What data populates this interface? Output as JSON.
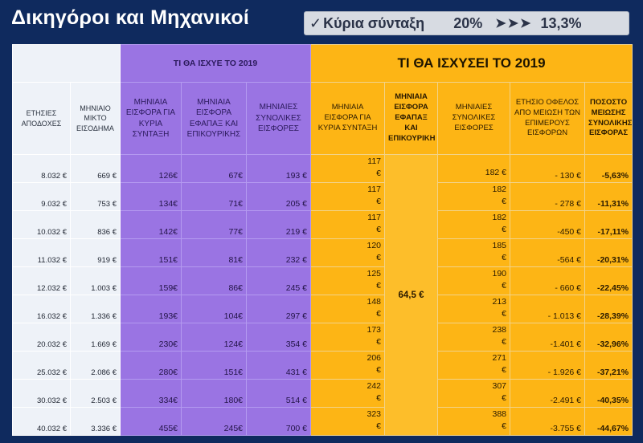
{
  "title": "Δικηγόροι και Μηχανικοί",
  "banner": {
    "check_icon": "✓",
    "label": "Κύρια σύνταξη",
    "old_rate": "20%",
    "arrows": "➤➤➤",
    "new_rate": "13,3%"
  },
  "groups": {
    "current": "ΤΙ ΘΑ ΙΣΧΥΕ ΤΟ 2019",
    "new": "ΤΙ ΘΑ ΙΣΧΥΣΕΙ ΤΟ 2019"
  },
  "headers": {
    "annual_income": "ΕΤΗΣΙΕΣ ΑΠΟΔΟΧΕΣ",
    "monthly_gross": "ΜΗΝΙΑΙΟ ΜΙΚΤΟ ΕΙΣΟΔΗΜΑ",
    "cur_main": "ΜΗΝΙΑΙΑ ΕΙΣΦΟΡΑ ΓΙΑ ΚΥΡΙΑ ΣΥΝΤΑΞΗ",
    "cur_lump": "ΜΗΝΙΑΙΑ ΕΙΣΦΟΡΑ ΕΦΑΠΑΞ ΚΑΙ ΕΠΙΚΟΥΡΙΚΗΣ",
    "cur_total": "ΜΗΝΙΑΙΕΣ ΣΥΝΟΛΙΚΕΣ ΕΙΣΦΟΡΕΣ",
    "new_main": "ΜΗΝΙΑΙΑ ΕΙΣΦΟΡΑ ΓΙΑ ΚΥΡΙΑ ΣΥΝΤΑΞΗ",
    "new_lump": "ΜΗΝΙΑΙΑ ΕΙΣΦΟΡΑ ΕΦΑΠΑΞ ΚΑΙ ΕΠΙΚΟΥΡΙΚΗ",
    "new_total": "ΜΗΝΙΑΙΕΣ ΣΥΝΟΛΙΚΕΣ ΕΙΣΦΟΡΕΣ",
    "annual_benefit": "ΕΤΗΣΙΟ ΟΦΕΛΟΣ ΑΠΟ ΜΕΙΩΣΗ ΤΩΝ ΕΠΙΜΕΡΟΥΣ ΕΙΣΦΟΡΩΝ",
    "pct_reduction": "ΠΟΣΟΣΤΟ ΜΕΙΩΣΗΣ ΣΥΝΟΛΙΚΗΣ ΕΙΣΦΟΡΑΣ"
  },
  "new_lump_value": "64,5 €",
  "rows": [
    {
      "annual": "8.032 €",
      "monthly": "669 €",
      "cur_main": "126€",
      "cur_lump": "67€",
      "cur_total": "193 €",
      "new_main": "117",
      "new_main_cur": "€",
      "new_total": "",
      "new_total_val": "182 €",
      "benefit": "- 130 €",
      "pct": "-5,63%"
    },
    {
      "annual": "9.032 €",
      "monthly": "753 €",
      "cur_main": "134€",
      "cur_lump": "71€",
      "cur_total": "205 €",
      "new_main": "117",
      "new_main_cur": "€",
      "new_total": "182",
      "new_total_val": "€",
      "benefit": "- 278 €",
      "pct": "-11,31%"
    },
    {
      "annual": "10.032 €",
      "monthly": "836 €",
      "cur_main": "142€",
      "cur_lump": "77€",
      "cur_total": "219 €",
      "new_main": "117",
      "new_main_cur": "€",
      "new_total": "182",
      "new_total_val": "€",
      "benefit": "-450 €",
      "pct": "-17,11%"
    },
    {
      "annual": "11.032 €",
      "monthly": "919 €",
      "cur_main": "151€",
      "cur_lump": "81€",
      "cur_total": "232 €",
      "new_main": "120",
      "new_main_cur": "€",
      "new_total": "185",
      "new_total_val": "€",
      "benefit": "-564 €",
      "pct": "-20,31%"
    },
    {
      "annual": "12.032 €",
      "monthly": "1.003 €",
      "cur_main": "159€",
      "cur_lump": "86€",
      "cur_total": "245 €",
      "new_main": "125",
      "new_main_cur": "€",
      "new_total": "190",
      "new_total_val": "€",
      "benefit": "- 660 €",
      "pct": "-22,45%"
    },
    {
      "annual": "16.032 €",
      "monthly": "1.336 €",
      "cur_main": "193€",
      "cur_lump": "104€",
      "cur_total": "297 €",
      "new_main": "148",
      "new_main_cur": "€",
      "new_total": "213",
      "new_total_val": "€",
      "benefit": "- 1.013 €",
      "pct": "-28,39%"
    },
    {
      "annual": "20.032 €",
      "monthly": "1.669 €",
      "cur_main": "230€",
      "cur_lump": "124€",
      "cur_total": "354 €",
      "new_main": "173",
      "new_main_cur": "€",
      "new_total": "238",
      "new_total_val": "€",
      "benefit": "-1.401 €",
      "pct": "-32,96%"
    },
    {
      "annual": "25.032 €",
      "monthly": "2.086 €",
      "cur_main": "280€",
      "cur_lump": "151€",
      "cur_total": "431 €",
      "new_main": "206",
      "new_main_cur": "€",
      "new_total": "271",
      "new_total_val": "€",
      "benefit": "- 1.926 €",
      "pct": "-37,21%"
    },
    {
      "annual": "30.032 €",
      "monthly": "2.503 €",
      "cur_main": "334€",
      "cur_lump": "180€",
      "cur_total": "514 €",
      "new_main": "242",
      "new_main_cur": "€",
      "new_total": "307",
      "new_total_val": "€",
      "benefit": "-2.491 €",
      "pct": "-40,35%"
    },
    {
      "annual": "40.032 €",
      "monthly": "3.336 €",
      "cur_main": "455€",
      "cur_lump": "245€",
      "cur_total": "700 €",
      "new_main": "323",
      "new_main_cur": "€",
      "new_total": "388",
      "new_total_val": "€",
      "benefit": "-3.755 €",
      "pct": "-44,67%"
    }
  ]
}
